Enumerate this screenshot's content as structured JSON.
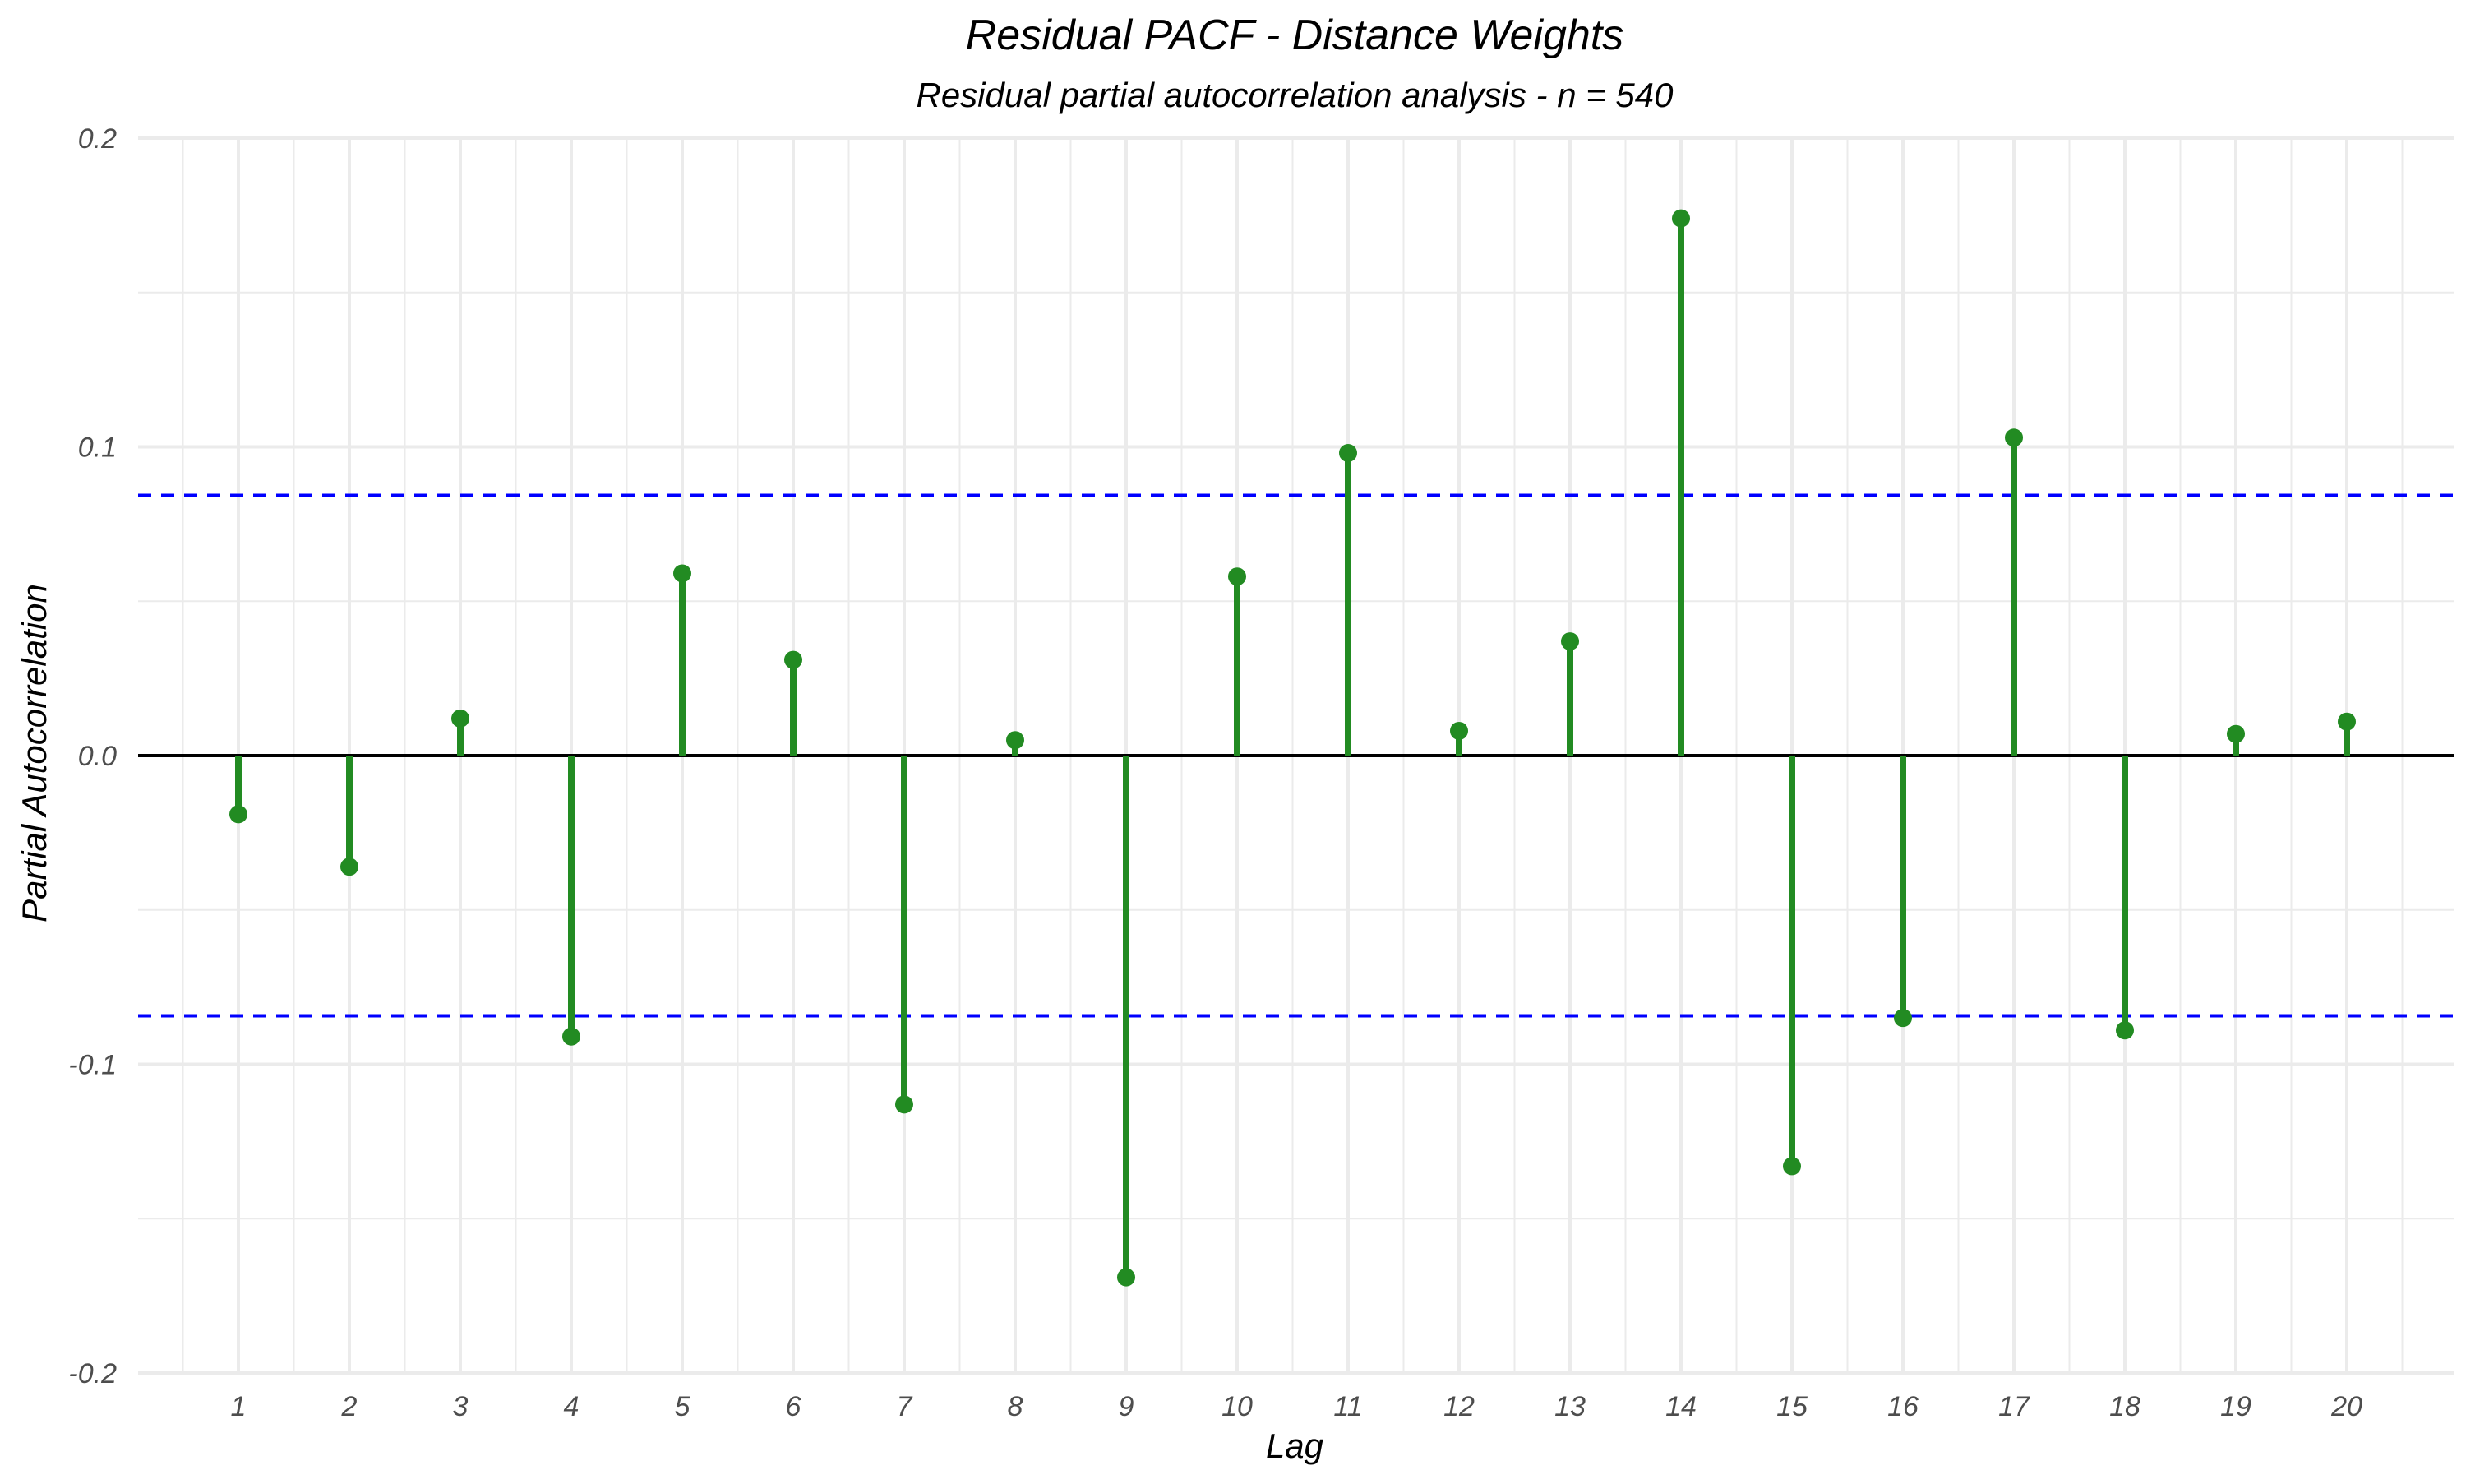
{
  "chart_data": {
    "type": "stem",
    "title": "Residual PACF - Distance Weights",
    "subtitle": "Residual partial autocorrelation analysis - n = 540",
    "xlabel": "Lag",
    "ylabel": "Partial Autocorrelation",
    "categories": [
      "1",
      "2",
      "3",
      "4",
      "5",
      "6",
      "7",
      "8",
      "9",
      "10",
      "11",
      "12",
      "13",
      "14",
      "15",
      "16",
      "17",
      "18",
      "19",
      "20"
    ],
    "values": [
      -0.019,
      -0.036,
      0.012,
      -0.091,
      0.059,
      0.031,
      -0.113,
      0.005,
      -0.169,
      0.058,
      0.098,
      0.008,
      0.037,
      0.174,
      -0.133,
      -0.085,
      0.103,
      -0.089,
      0.007,
      0.011
    ],
    "ylim": [
      -0.2,
      0.2
    ],
    "yticks": [
      -0.2,
      -0.1,
      0.0,
      0.1,
      0.2
    ],
    "ytick_labels": [
      "-0.2",
      "-0.1",
      "0.0",
      "0.1",
      "0.2"
    ],
    "confidence_bound": 0.0843,
    "grid": true,
    "colors": {
      "stem": "#228b22",
      "confidence_line": "#0000ff",
      "zero_line": "#000000",
      "grid": "#ebebeb"
    }
  }
}
